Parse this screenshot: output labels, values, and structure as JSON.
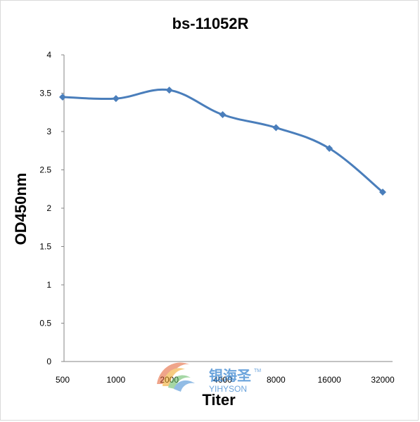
{
  "chart_data": {
    "type": "line",
    "title": "bs-11052R",
    "xlabel": "Titer",
    "ylabel": "OD450nm",
    "categories": [
      "500",
      "1000",
      "2000",
      "4000",
      "8000",
      "16000",
      "32000"
    ],
    "series": [
      {
        "values": [
          3.45,
          3.43,
          3.54,
          3.22,
          3.05,
          2.78,
          2.21
        ]
      }
    ],
    "ylim": [
      0,
      4
    ],
    "yticks": [
      "0",
      "0.5",
      "1",
      "1.5",
      "2",
      "2.5",
      "3",
      "3.5",
      "4"
    ],
    "grid": false,
    "legend": "none",
    "line_color": "#4a7ebb",
    "marker": "diamond"
  },
  "watermark": {
    "cn_text": "银海圣",
    "en_text": "YIHYSON",
    "tm": "TM",
    "color": "#3a86d1"
  }
}
